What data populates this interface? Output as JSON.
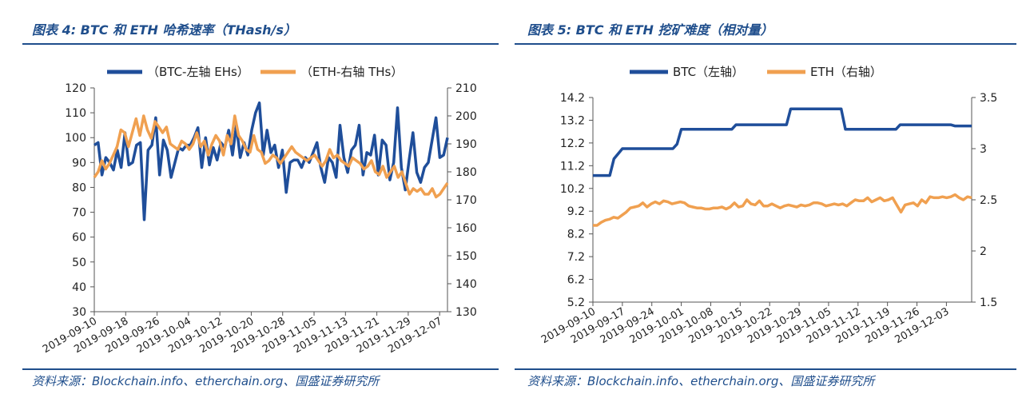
{
  "panels": [
    {
      "title": "图表 4:  BTC 和 ETH 哈希速率（THash/s）",
      "source": "资料来源：Blockchain.info、etherchain.org、国盛证券研究所"
    },
    {
      "title": "图表 5:  BTC 和 ETH 挖矿难度（相对量）",
      "source": "资料来源：Blockchain.info、etherchain.org、国盛证券研究所"
    }
  ],
  "colors": {
    "btc": "#1f4e9a",
    "eth": "#f0a050",
    "accent": "#1f4e8c"
  },
  "chart_data": [
    {
      "type": "line",
      "title": "BTC 和 ETH 哈希速率（THash/s）",
      "legend_position": "top",
      "grid": false,
      "x_ticks": [
        "2019-09-10",
        "2019-09-18",
        "2019-09-26",
        "2019-10-04",
        "2019-10-12",
        "2019-10-20",
        "2019-10-28",
        "2019-11-05",
        "2019-11-13",
        "2019-11-21",
        "2019-11-29",
        "2019-12-07"
      ],
      "x_start": "2019-09-10",
      "x_end": "2019-12-09",
      "y_left": {
        "min": 30,
        "max": 120,
        "ticks": [
          30,
          40,
          50,
          60,
          70,
          80,
          90,
          100,
          110,
          120
        ]
      },
      "y_right": {
        "min": 130,
        "max": 210,
        "ticks": [
          130,
          140,
          150,
          160,
          170,
          180,
          190,
          200,
          210
        ]
      },
      "series": [
        {
          "name": "（BTC-左轴 EHs）",
          "axis": "left",
          "color": "#1f4e9a",
          "values": [
            97,
            98,
            85,
            92,
            90,
            87,
            95,
            88,
            102,
            89,
            90,
            97,
            98,
            67,
            95,
            97,
            108,
            85,
            99,
            95,
            84,
            90,
            96,
            95,
            97,
            97,
            100,
            104,
            88,
            100,
            89,
            96,
            91,
            98,
            96,
            103,
            93,
            105,
            92,
            98,
            93,
            103,
            110,
            114,
            93,
            103,
            94,
            97,
            88,
            95,
            78,
            90,
            91,
            91,
            88,
            92,
            90,
            94,
            98,
            88,
            82,
            92,
            90,
            84,
            105,
            92,
            86,
            95,
            97,
            105,
            85,
            94,
            93,
            101,
            85,
            99,
            97,
            83,
            90,
            112,
            88,
            79,
            91,
            102,
            86,
            82,
            88,
            90,
            99,
            108,
            92,
            93,
            100
          ]
        },
        {
          "name": "（ETH-右轴 THs）",
          "axis": "right",
          "color": "#f0a050",
          "values": [
            178,
            180,
            184,
            181,
            183,
            186,
            189,
            195,
            194,
            189,
            194,
            199,
            193,
            200,
            195,
            192,
            198,
            196,
            194,
            196,
            190,
            189,
            188,
            191,
            190,
            188,
            190,
            194,
            189,
            191,
            186,
            190,
            193,
            191,
            186,
            193,
            190,
            200,
            193,
            191,
            188,
            187,
            193,
            188,
            187,
            183,
            184,
            186,
            185,
            183,
            185,
            187,
            189,
            187,
            186,
            185,
            184,
            185,
            186,
            184,
            182,
            184,
            188,
            185,
            186,
            184,
            183,
            182,
            185,
            184,
            183,
            181,
            182,
            184,
            180,
            179,
            182,
            178,
            180,
            182,
            178,
            180,
            176,
            172,
            174,
            173,
            174,
            172,
            172,
            174,
            171,
            172,
            174,
            176
          ]
        }
      ]
    },
    {
      "type": "line",
      "title": "BTC 和 ETH 挖矿难度（相对量）",
      "legend_position": "top",
      "grid": false,
      "x_ticks": [
        "2019-09-10",
        "2019-09-17",
        "2019-09-24",
        "2019-10-01",
        "2019-10-08",
        "2019-10-15",
        "2019-10-22",
        "2019-10-29",
        "2019-11-05",
        "2019-11-12",
        "2019-11-19",
        "2019-11-26",
        "2019-12-03"
      ],
      "x_start": "2019-09-10",
      "x_end": "2019-12-09",
      "y_left": {
        "min": 5.2,
        "max": 14.2,
        "ticks": [
          5.2,
          6.2,
          7.2,
          8.2,
          9.2,
          10.2,
          11.2,
          12.2,
          13.2,
          14.2
        ]
      },
      "y_right": {
        "min": 1.5,
        "max": 3.5,
        "ticks": [
          1.5,
          2,
          2.5,
          3,
          3.5
        ]
      },
      "series": [
        {
          "name": "BTC（左轴）",
          "axis": "left",
          "color": "#1f4e9a",
          "points": [
            [
              "2019-09-10",
              10.77
            ],
            [
              "2019-09-14",
              10.77
            ],
            [
              "2019-09-15",
              11.5
            ],
            [
              "2019-09-17",
              11.95
            ],
            [
              "2019-09-29",
              11.95
            ],
            [
              "2019-09-30",
              12.15
            ],
            [
              "2019-10-01",
              12.8
            ],
            [
              "2019-10-13",
              12.8
            ],
            [
              "2019-10-14",
              13.0
            ],
            [
              "2019-10-26",
              13.0
            ],
            [
              "2019-10-27",
              13.7
            ],
            [
              "2019-11-08",
              13.7
            ],
            [
              "2019-11-09",
              12.8
            ],
            [
              "2019-11-21",
              12.8
            ],
            [
              "2019-11-22",
              13.0
            ],
            [
              "2019-12-04",
              13.0
            ],
            [
              "2019-12-05",
              12.95
            ],
            [
              "2019-12-09",
              12.95
            ]
          ]
        },
        {
          "name": "ETH（右轴）",
          "axis": "right",
          "color": "#f0a050",
          "values": [
            2.25,
            2.25,
            2.28,
            2.3,
            2.31,
            2.33,
            2.32,
            2.35,
            2.38,
            2.42,
            2.43,
            2.44,
            2.47,
            2.43,
            2.46,
            2.48,
            2.46,
            2.49,
            2.48,
            2.46,
            2.47,
            2.48,
            2.47,
            2.44,
            2.43,
            2.42,
            2.42,
            2.41,
            2.41,
            2.42,
            2.42,
            2.43,
            2.41,
            2.43,
            2.47,
            2.43,
            2.44,
            2.5,
            2.46,
            2.45,
            2.49,
            2.44,
            2.44,
            2.46,
            2.44,
            2.42,
            2.44,
            2.45,
            2.44,
            2.43,
            2.45,
            2.44,
            2.45,
            2.47,
            2.47,
            2.46,
            2.44,
            2.45,
            2.46,
            2.45,
            2.46,
            2.44,
            2.47,
            2.5,
            2.49,
            2.49,
            2.52,
            2.48,
            2.5,
            2.52,
            2.49,
            2.5,
            2.52,
            2.45,
            2.38,
            2.45,
            2.46,
            2.47,
            2.44,
            2.5,
            2.47,
            2.53,
            2.52,
            2.52,
            2.53,
            2.52,
            2.53,
            2.55,
            2.52,
            2.5,
            2.53,
            2.52
          ]
        }
      ]
    }
  ]
}
